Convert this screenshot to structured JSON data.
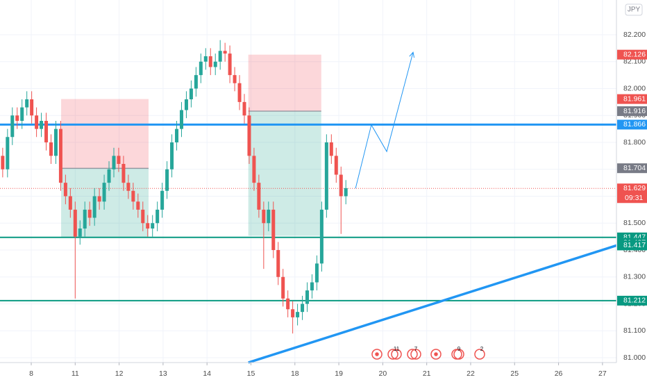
{
  "chart_data": {
    "type": "candlestick",
    "currency": "JPY",
    "xlim": [
      -0.711,
      13.318
    ],
    "ylim": [
      80.982,
      82.329
    ],
    "xticks": [
      {
        "value": 0,
        "label": "8"
      },
      {
        "value": 1,
        "label": "11"
      },
      {
        "value": 2,
        "label": "12"
      },
      {
        "value": 3,
        "label": "13"
      },
      {
        "value": 4,
        "label": "14"
      },
      {
        "value": 5,
        "label": "15"
      },
      {
        "value": 6,
        "label": "18"
      },
      {
        "value": 7,
        "label": "19"
      },
      {
        "value": 8,
        "label": "20"
      },
      {
        "value": 9,
        "label": "21"
      },
      {
        "value": 10,
        "label": "22"
      },
      {
        "value": 11,
        "label": "25"
      },
      {
        "value": 12,
        "label": "26"
      },
      {
        "value": 13,
        "label": "27"
      }
    ],
    "yticks": [
      {
        "value": 81,
        "label": "81.000"
      },
      {
        "value": 81.1,
        "label": "81.100"
      },
      {
        "value": 81.2,
        "label": "81.200"
      },
      {
        "value": 81.3,
        "label": "81.300"
      },
      {
        "value": 81.4,
        "label": "81.400"
      },
      {
        "value": 81.5,
        "label": "81.500"
      },
      {
        "value": 81.6,
        "label": "81.600"
      },
      {
        "value": 81.7,
        "label": "81.700"
      },
      {
        "value": 81.8,
        "label": "81.800"
      },
      {
        "value": 81.9,
        "label": "81.900"
      },
      {
        "value": 82,
        "label": "82.000"
      },
      {
        "value": 82.1,
        "label": "82.100"
      },
      {
        "value": 82.2,
        "label": "82.200"
      }
    ],
    "grid": true,
    "up_color": "#26a69a",
    "down_color": "#ef5350",
    "x": [
      -0.65,
      -0.54,
      -0.43,
      -0.32,
      -0.21,
      -0.1,
      0.01,
      0.12,
      0.23,
      0.34,
      0.45,
      0.56,
      0.67,
      0.78,
      0.89,
      1.0,
      1.11,
      1.22,
      1.33,
      1.44,
      1.55,
      1.66,
      1.77,
      1.88,
      1.99,
      2.1,
      2.21,
      2.32,
      2.43,
      2.54,
      2.65,
      2.76,
      2.87,
      2.98,
      3.09,
      3.2,
      3.31,
      3.42,
      3.53,
      3.64,
      3.75,
      3.86,
      3.97,
      4.08,
      4.19,
      4.3,
      4.41,
      4.52,
      4.63,
      4.74,
      4.85,
      4.96,
      5.07,
      5.18,
      5.29,
      5.4,
      5.51,
      5.62,
      5.73,
      5.84,
      5.95,
      6.06,
      6.17,
      6.28,
      6.39,
      6.5,
      6.61,
      6.72,
      6.83,
      6.94,
      7.05,
      7.16
    ],
    "open": [
      81.75,
      81.7,
      81.82,
      81.9,
      81.88,
      81.93,
      81.96,
      81.9,
      81.85,
      81.88,
      81.8,
      81.75,
      81.85,
      81.65,
      81.6,
      81.55,
      81.45,
      81.48,
      81.55,
      81.52,
      81.6,
      81.58,
      81.65,
      81.7,
      81.75,
      81.72,
      81.65,
      81.62,
      81.58,
      81.55,
      81.5,
      81.48,
      81.5,
      81.55,
      81.62,
      81.7,
      81.8,
      81.85,
      81.92,
      81.96,
      82.0,
      82.05,
      82.1,
      82.12,
      82.08,
      82.1,
      82.14,
      82.13,
      82.05,
      82.02,
      81.95,
      81.9,
      81.75,
      81.65,
      81.55,
      81.5,
      81.55,
      81.4,
      81.3,
      81.22,
      81.18,
      81.15,
      81.17,
      81.2,
      81.25,
      81.28,
      81.35,
      81.55,
      81.8,
      81.75,
      81.68,
      81.6
    ],
    "high": [
      81.78,
      81.85,
      81.93,
      81.93,
      81.96,
      81.99,
      81.99,
      81.93,
      81.91,
      81.91,
      81.83,
      81.88,
      81.88,
      81.68,
      81.63,
      81.58,
      81.51,
      81.58,
      81.58,
      81.63,
      81.63,
      81.68,
      81.73,
      81.78,
      81.78,
      81.75,
      81.68,
      81.65,
      81.61,
      81.58,
      81.53,
      81.53,
      81.58,
      81.65,
      81.73,
      81.83,
      81.88,
      81.95,
      81.99,
      82.03,
      82.08,
      82.13,
      82.15,
      82.15,
      82.13,
      82.18,
      82.17,
      82.16,
      82.08,
      82.05,
      81.98,
      81.93,
      81.78,
      81.68,
      81.58,
      81.58,
      81.58,
      81.43,
      81.33,
      81.25,
      81.21,
      81.2,
      81.23,
      81.28,
      81.31,
      81.38,
      81.58,
      81.83,
      81.83,
      81.78,
      81.71,
      81.66
    ],
    "low": [
      81.67,
      81.67,
      81.79,
      81.85,
      81.85,
      81.9,
      81.87,
      81.82,
      81.82,
      81.77,
      81.72,
      81.72,
      81.62,
      81.57,
      81.52,
      81.22,
      81.42,
      81.45,
      81.49,
      81.49,
      81.55,
      81.55,
      81.62,
      81.67,
      81.69,
      81.62,
      81.59,
      81.55,
      81.52,
      81.47,
      81.45,
      81.45,
      81.47,
      81.52,
      81.59,
      81.67,
      81.77,
      81.82,
      81.89,
      81.93,
      81.97,
      82.02,
      82.07,
      82.05,
      82.05,
      82.07,
      82.1,
      82.02,
      81.99,
      81.92,
      81.87,
      81.72,
      81.62,
      81.52,
      81.33,
      81.47,
      81.37,
      81.27,
      81.19,
      81.15,
      81.09,
      81.12,
      81.14,
      81.17,
      81.22,
      81.25,
      81.32,
      81.52,
      81.72,
      81.65,
      81.46,
      81.57
    ],
    "close": [
      81.7,
      81.82,
      81.9,
      81.88,
      81.93,
      81.96,
      81.9,
      81.85,
      81.88,
      81.8,
      81.75,
      81.85,
      81.65,
      81.6,
      81.55,
      81.45,
      81.48,
      81.55,
      81.52,
      81.6,
      81.58,
      81.65,
      81.7,
      81.75,
      81.72,
      81.65,
      81.62,
      81.58,
      81.55,
      81.5,
      81.48,
      81.5,
      81.55,
      81.62,
      81.7,
      81.8,
      81.85,
      81.92,
      81.96,
      82.0,
      82.05,
      82.1,
      82.12,
      82.08,
      82.1,
      82.14,
      82.13,
      82.05,
      82.02,
      81.95,
      81.9,
      81.75,
      81.65,
      81.55,
      81.5,
      81.55,
      81.4,
      81.3,
      81.22,
      81.18,
      81.15,
      81.17,
      81.2,
      81.25,
      81.28,
      81.35,
      81.55,
      81.8,
      81.75,
      81.68,
      81.6,
      81.63
    ],
    "positions": [
      {
        "x": [
          0.68,
          2.67
        ],
        "stop": 81.961,
        "entry": 81.704,
        "target": 81.447
      },
      {
        "x": [
          4.94,
          6.6
        ],
        "stop": 82.126,
        "entry": 81.916,
        "target": 81.453
      }
    ],
    "hlines": [
      {
        "value": 81.866,
        "color": "#2196f3"
      },
      {
        "value": 81.447,
        "color": "#089981"
      },
      {
        "value": 81.212,
        "color": "#089981"
      }
    ],
    "trendline": {
      "x": [
        4.94,
        13.318
      ],
      "y": [
        80.982,
        81.417
      ],
      "color": "#2196f3"
    },
    "projection": {
      "x": [
        7.38,
        7.74,
        8.09,
        8.69
      ],
      "y": [
        81.629,
        81.865,
        81.766,
        82.135
      ],
      "color": "#2196f3"
    },
    "last_price": {
      "value": 81.629,
      "color": "#ef5350",
      "countdown": "09:31"
    },
    "price_labels": [
      {
        "value": 82.126,
        "color": "#ef5350"
      },
      {
        "value": 81.961,
        "color": "#ef5350"
      },
      {
        "value": 81.916,
        "color": "#787b86"
      },
      {
        "value": 81.866,
        "color": "#2196f3"
      },
      {
        "value": 81.704,
        "color": "#787b86"
      },
      {
        "value": 81.447,
        "color": "#089981"
      },
      {
        "value": 81.427,
        "color": "#089981"
      },
      {
        "value": 81.417,
        "color": "#089981"
      },
      {
        "value": 81.212,
        "color": "#089981"
      }
    ],
    "event_counts": [
      11,
      7,
      9,
      2
    ]
  }
}
